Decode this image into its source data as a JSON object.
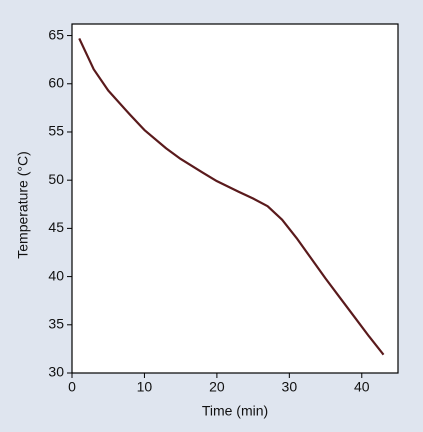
{
  "chart_data": {
    "type": "line",
    "x_label": "Time (min)",
    "y_label": "Temperature (°C)",
    "x": [
      1,
      3,
      5,
      8,
      10,
      13,
      15,
      18,
      20,
      23,
      25,
      27,
      29,
      31,
      33,
      35,
      37,
      39,
      41,
      43
    ],
    "series": [
      {
        "name": "Temperature",
        "color": "#5a1a1c",
        "values": [
          64.7,
          61.5,
          59.3,
          56.8,
          55.2,
          53.3,
          52.2,
          50.8,
          49.9,
          48.8,
          48.1,
          47.3,
          45.9,
          44.0,
          41.9,
          39.8,
          37.8,
          35.8,
          33.8,
          31.9
        ]
      }
    ],
    "xlim": [
      0,
      45
    ],
    "ylim": [
      30,
      66.2
    ],
    "xticks": [
      0,
      10,
      20,
      30,
      40
    ],
    "yticks": [
      30,
      35,
      40,
      45,
      50,
      55,
      60,
      65
    ]
  }
}
